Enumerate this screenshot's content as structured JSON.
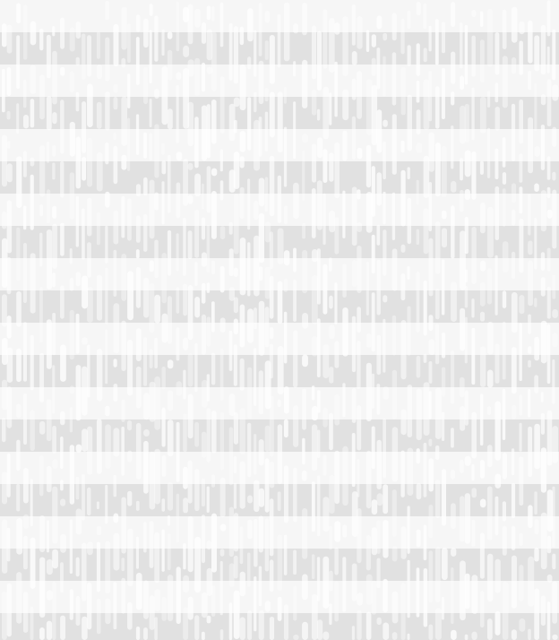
{
  "pattern": {
    "type": "horizontal stripes with vertical drip streaks",
    "colors": {
      "light_band": "#f6f6f6",
      "dark_band": "#e1e1e1",
      "drip": "#ffffff"
    }
  }
}
